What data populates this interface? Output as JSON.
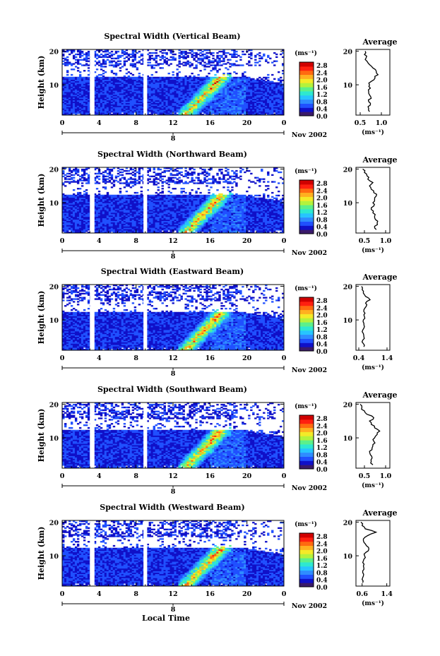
{
  "figure": {
    "x_axis_label": "Local Time",
    "date_label": "Nov 2002",
    "day_label": "8",
    "y_axis_label": "Height (km)",
    "avg_title": "Average",
    "avg_unit": "(ms⁻¹)",
    "colorbar_unit": "(ms⁻¹)"
  },
  "colorscale": {
    "colors": [
      "#3a1a6a",
      "#1010c8",
      "#2050ff",
      "#2f8cff",
      "#27c4ff",
      "#2ee8d0",
      "#5cf08a",
      "#b4f23c",
      "#f4ea28",
      "#ffb020",
      "#ff6a10",
      "#ff2010",
      "#d00000"
    ],
    "tick_labels": [
      "2.8",
      "2.4",
      "2.0",
      "1.6",
      "1.2",
      "0.8",
      "0.4",
      "0.0"
    ]
  },
  "chart_data": [
    {
      "type": "heatmap",
      "title": "Spectral Width (Vertical Beam)",
      "x_ticks": [
        "0",
        "4",
        "8",
        "12",
        "16",
        "20",
        "0"
      ],
      "y_ticks": [
        "20",
        "10"
      ],
      "x_range_hours": [
        0,
        24
      ],
      "y_range_km": [
        1,
        20.5
      ],
      "data_gaps_hours": [
        [
          3.0,
          3.5
        ],
        [
          8.8,
          9.2
        ]
      ],
      "average_profile": {
        "x_ticks": [
          "0.5",
          "1.0"
        ],
        "y_ticks": [
          "20",
          "10"
        ],
        "xlim": [
          0.4,
          1.2
        ],
        "height_km": [
          2,
          3,
          4,
          5,
          6,
          7,
          8,
          9,
          10,
          11,
          12,
          13,
          14,
          15,
          16,
          17,
          18,
          19,
          20
        ],
        "width_ms": [
          0.72,
          0.7,
          0.74,
          0.7,
          0.76,
          0.72,
          0.7,
          0.74,
          0.72,
          0.76,
          0.85,
          0.92,
          0.88,
          0.8,
          0.72,
          0.66,
          0.64,
          0.6,
          0.62
        ]
      }
    },
    {
      "type": "heatmap",
      "title": "Spectral Width (Northward Beam)",
      "x_ticks": [
        "0",
        "4",
        "8",
        "12",
        "16",
        "20",
        "0"
      ],
      "y_ticks": [
        "20",
        "10"
      ],
      "x_range_hours": [
        0,
        24
      ],
      "y_range_km": [
        1,
        20.5
      ],
      "data_gaps_hours": [
        [
          3.0,
          3.5
        ],
        [
          8.8,
          9.2
        ]
      ],
      "average_profile": {
        "x_ticks": [
          "0.5",
          "1.0"
        ],
        "y_ticks": [
          "20",
          "10"
        ],
        "xlim": [
          0.3,
          1.1
        ],
        "height_km": [
          2,
          3,
          4,
          5,
          6,
          7,
          8,
          9,
          10,
          11,
          12,
          13,
          14,
          15,
          16,
          17,
          18,
          19,
          20
        ],
        "width_ms": [
          0.78,
          0.74,
          0.8,
          0.76,
          0.74,
          0.7,
          0.66,
          0.72,
          0.7,
          0.74,
          0.78,
          0.72,
          0.66,
          0.62,
          0.7,
          0.58,
          0.56,
          0.5,
          0.46
        ]
      }
    },
    {
      "type": "heatmap",
      "title": "Spectral Width (Eastward Beam)",
      "x_ticks": [
        "0",
        "4",
        "8",
        "12",
        "16",
        "20",
        "0"
      ],
      "y_ticks": [
        "20",
        "10"
      ],
      "x_range_hours": [
        0,
        24
      ],
      "y_range_km": [
        1,
        20.5
      ],
      "data_gaps_hours": [
        [
          3.0,
          3.5
        ],
        [
          8.8,
          9.2
        ]
      ],
      "average_profile": {
        "x_ticks": [
          "0.4",
          "1.4"
        ],
        "y_ticks": [
          "20",
          "10"
        ],
        "xlim": [
          0.3,
          1.5
        ],
        "height_km": [
          2,
          3,
          4,
          5,
          6,
          7,
          8,
          9,
          10,
          11,
          12,
          13,
          14,
          15,
          16,
          17,
          18,
          19,
          20
        ],
        "width_ms": [
          0.58,
          0.56,
          0.54,
          0.58,
          0.56,
          0.54,
          0.6,
          0.58,
          0.56,
          0.6,
          0.62,
          0.58,
          0.66,
          0.64,
          0.8,
          0.64,
          0.56,
          0.52,
          0.5
        ]
      }
    },
    {
      "type": "heatmap",
      "title": "Spectral Width (Southward Beam)",
      "x_ticks": [
        "0",
        "4",
        "8",
        "12",
        "16",
        "20",
        "0"
      ],
      "y_ticks": [
        "20",
        "10"
      ],
      "x_range_hours": [
        0,
        24
      ],
      "y_range_km": [
        1,
        20.5
      ],
      "data_gaps_hours": [
        [
          3.0,
          3.5
        ],
        [
          8.8,
          9.2
        ]
      ],
      "average_profile": {
        "x_ticks": [
          "0.5",
          "1.0"
        ],
        "y_ticks": [
          "20",
          "10"
        ],
        "xlim": [
          0.3,
          1.1
        ],
        "height_km": [
          2,
          3,
          4,
          5,
          6,
          7,
          8,
          9,
          10,
          11,
          12,
          13,
          14,
          15,
          16,
          17,
          18,
          19,
          20
        ],
        "width_ms": [
          0.7,
          0.66,
          0.68,
          0.64,
          0.62,
          0.68,
          0.7,
          0.72,
          0.74,
          0.8,
          0.86,
          0.74,
          0.66,
          0.62,
          0.72,
          0.56,
          0.5,
          0.44,
          0.4
        ]
      }
    },
    {
      "type": "heatmap",
      "title": "Spectral Width (Westward Beam)",
      "x_ticks": [
        "0",
        "4",
        "8",
        "12",
        "16",
        "20",
        "0"
      ],
      "y_ticks": [
        "20",
        "10"
      ],
      "x_range_hours": [
        0,
        24
      ],
      "y_range_km": [
        1,
        20.5
      ],
      "data_gaps_hours": [
        [
          3.0,
          3.5
        ],
        [
          8.8,
          9.2
        ]
      ],
      "average_profile": {
        "x_ticks": [
          "0.6",
          "1.4"
        ],
        "y_ticks": [
          "20",
          "10"
        ],
        "xlim": [
          0.4,
          1.5
        ],
        "height_km": [
          2,
          3,
          4,
          5,
          6,
          7,
          8,
          9,
          10,
          11,
          12,
          13,
          14,
          15,
          16,
          17,
          18,
          19,
          20
        ],
        "width_ms": [
          0.62,
          0.6,
          0.64,
          0.62,
          0.66,
          0.64,
          0.62,
          0.66,
          0.68,
          0.72,
          0.82,
          0.74,
          0.66,
          0.64,
          0.78,
          1.05,
          0.7,
          0.6,
          0.56
        ]
      }
    }
  ]
}
